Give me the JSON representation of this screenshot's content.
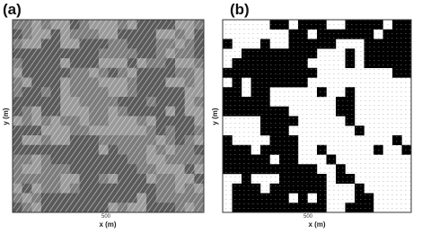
{
  "panels": [
    {
      "label": "(a)",
      "y_axis_label": "y (m)",
      "x_axis_label": "x (m)",
      "x_tick": "500"
    },
    {
      "label": "(b)",
      "y_axis_label": "y (m)",
      "x_axis_label": "x (m)",
      "x_tick": "500"
    }
  ]
}
